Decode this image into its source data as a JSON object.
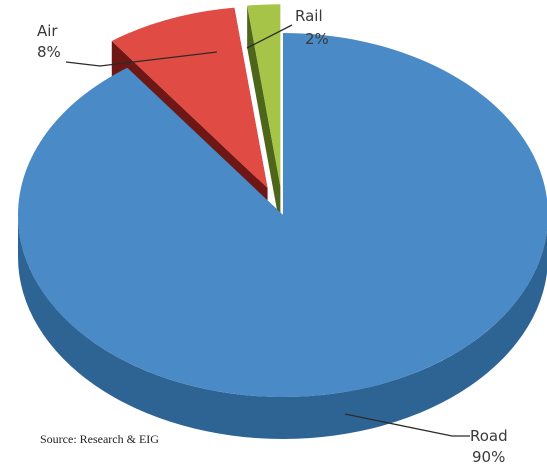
{
  "chart_data": {
    "type": "pie",
    "title": "",
    "slices": [
      {
        "label": "Road",
        "value": 90,
        "value_label": "90%",
        "color": "#4a8ac6",
        "side_color": "#2e6494",
        "inner_color": "#24507a"
      },
      {
        "label": "Air",
        "value": 8,
        "value_label": "8%",
        "color": "#e04b44",
        "side_color": "#8a201c",
        "inner_color": "#6e1714"
      },
      {
        "label": "Rail",
        "value": 2,
        "value_label": "2%",
        "color": "#a6c548",
        "side_color": "#6a8426",
        "inner_color": "#4e661a"
      }
    ],
    "style": "3d-exploded",
    "legend": "none"
  },
  "source_note": "Source: Research & EIG"
}
